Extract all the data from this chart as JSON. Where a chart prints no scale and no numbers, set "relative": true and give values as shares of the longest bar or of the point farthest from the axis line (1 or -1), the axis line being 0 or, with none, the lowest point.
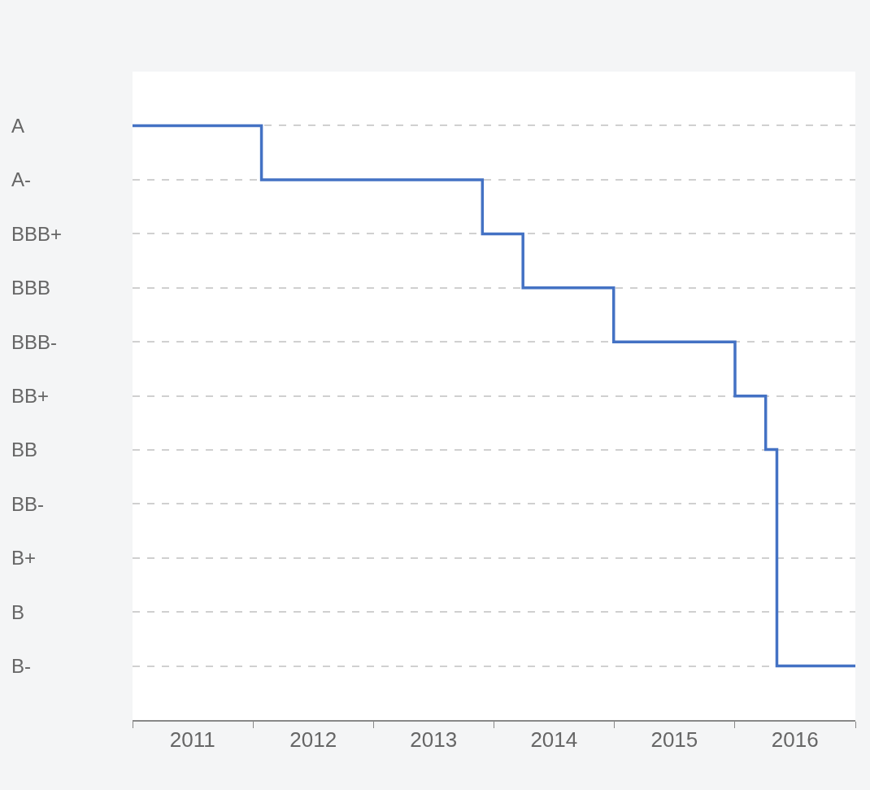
{
  "chart_data": {
    "type": "step",
    "color": "#4472c4",
    "relative": true,
    "x": [
      "2011-01-01",
      "2012-01-27",
      "2013-11-27",
      "2014-03-30",
      "2014-12-30",
      "2016-01-02",
      "2016-04-04",
      "2016-05-08",
      "2017-01-01"
    ],
    "values": [
      1,
      0.909,
      0.818,
      0.727,
      0.636,
      0.545,
      0.455,
      0.091,
      0.091
    ],
    "xlim": [
      "2011-01-01",
      "2017-01-01"
    ],
    "xticks": [
      {
        "value": "2011-07-02",
        "label": "2011"
      },
      {
        "value": "2012-07-02",
        "label": "2012"
      },
      {
        "value": "2013-07-02",
        "label": "2013"
      },
      {
        "value": "2014-07-02",
        "label": "2014"
      },
      {
        "value": "2015-07-02",
        "label": "2015"
      },
      {
        "value": "2016-07-02",
        "label": "2016"
      },
      {
        "value": "2012-01-01",
        "label": null
      },
      {
        "value": "2013-01-01",
        "label": null
      },
      {
        "value": "2014-01-01",
        "label": null
      },
      {
        "value": "2015-01-01",
        "label": null
      },
      {
        "value": "2016-01-01",
        "label": null
      },
      {
        "value": "2017-01-01",
        "label": null
      }
    ],
    "annotations": [
      "A",
      "A-",
      "BBB+",
      "BBB",
      "BBB-",
      "BB+",
      "BB",
      "BB-",
      "B+",
      "B",
      "B-"
    ],
    "grid": "y",
    "line_style": "solid",
    "marker": "none",
    "legend": false
  }
}
